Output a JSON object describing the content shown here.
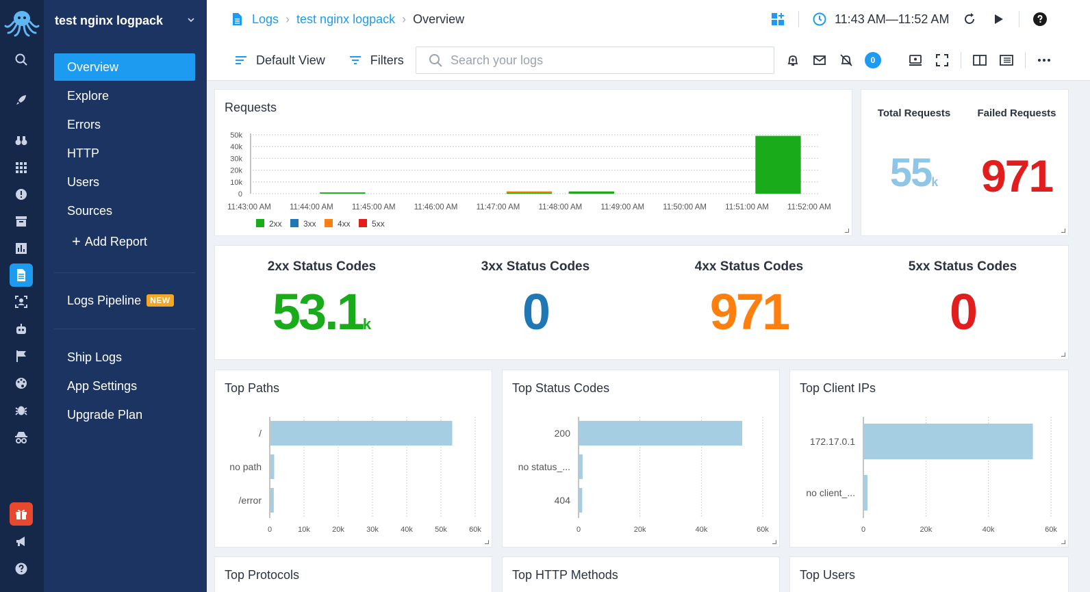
{
  "project": {
    "name": "test nginx logpack"
  },
  "nav": {
    "items": [
      "Overview",
      "Explore",
      "Errors",
      "HTTP",
      "Users",
      "Sources"
    ],
    "add_report": "Add Report",
    "logs_pipeline": "Logs Pipeline",
    "new_badge": "NEW",
    "bottom_items": [
      "Ship Logs",
      "App Settings",
      "Upgrade Plan"
    ]
  },
  "breadcrumb": {
    "root": "Logs",
    "project": "test nginx logpack",
    "current": "Overview"
  },
  "header": {
    "time_range": "11:43 AM—11:52 AM",
    "default_view": "Default View",
    "filters": "Filters",
    "search_placeholder": "Search your logs",
    "alert_count": "0"
  },
  "colors": {
    "accent": "#1d9bf0",
    "2xx": "#1aab1a",
    "3xx": "#1f77b4",
    "4xx": "#ff7f0e",
    "5xx": "#e11d1d",
    "bar": "#a6cee3",
    "total": "#8fc6e6"
  },
  "requests_panel": {
    "title": "Requests"
  },
  "totals": {
    "total_label": "Total Requests",
    "total_value": "55",
    "total_suffix": "k",
    "failed_label": "Failed Requests",
    "failed_value": "971"
  },
  "status_codes": [
    {
      "label": "2xx Status Codes",
      "value": "53.1",
      "suffix": "k",
      "color": "#1aab1a"
    },
    {
      "label": "3xx Status Codes",
      "value": "0",
      "suffix": "",
      "color": "#1f77b4"
    },
    {
      "label": "4xx Status Codes",
      "value": "971",
      "suffix": "",
      "color": "#ff7f0e"
    },
    {
      "label": "5xx Status Codes",
      "value": "0",
      "suffix": "",
      "color": "#e11d1d"
    }
  ],
  "bottom_panels": {
    "protocols": "Top Protocols",
    "methods": "Top HTTP Methods",
    "users": "Top Users"
  },
  "chart_data": [
    {
      "type": "bar",
      "title": "Requests",
      "stacked": true,
      "categories": [
        "11:43:00 AM",
        "11:44:00 AM",
        "11:45:00 AM",
        "11:46:00 AM",
        "11:47:00 AM",
        "11:48:00 AM",
        "11:49:00 AM",
        "11:50:00 AM",
        "11:51:00 AM",
        "11:52:00 AM"
      ],
      "series": [
        {
          "name": "2xx",
          "color": "#1aab1a",
          "values": [
            0,
            1100,
            0,
            0,
            1000,
            1900,
            0,
            0,
            49100,
            0
          ]
        },
        {
          "name": "3xx",
          "color": "#1f77b4",
          "values": [
            0,
            0,
            0,
            0,
            0,
            0,
            0,
            0,
            0,
            0
          ]
        },
        {
          "name": "4xx",
          "color": "#ff7f0e",
          "values": [
            0,
            0,
            0,
            0,
            971,
            0,
            0,
            0,
            0,
            0
          ]
        },
        {
          "name": "5xx",
          "color": "#e11d1d",
          "values": [
            0,
            0,
            0,
            0,
            0,
            0,
            0,
            0,
            0,
            0
          ]
        }
      ],
      "yticks": [
        "0",
        "10k",
        "20k",
        "30k",
        "40k",
        "50k"
      ],
      "ylim": [
        0,
        50000
      ],
      "legend": "bottom-left",
      "grid": true
    },
    {
      "type": "bar",
      "orientation": "horizontal",
      "title": "Top Paths",
      "categories": [
        "/",
        "no path",
        "/error"
      ],
      "values": [
        53100,
        1100,
        971
      ],
      "xticks": [
        "0",
        "10k",
        "20k",
        "30k",
        "40k",
        "50k",
        "60k"
      ],
      "xlim": [
        0,
        60000
      ]
    },
    {
      "type": "bar",
      "orientation": "horizontal",
      "title": "Top Status Codes",
      "categories": [
        "200",
        "no status_...",
        "404"
      ],
      "values": [
        53100,
        1100,
        971
      ],
      "xticks": [
        "0",
        "20k",
        "40k",
        "60k"
      ],
      "xlim": [
        0,
        60000
      ]
    },
    {
      "type": "bar",
      "orientation": "horizontal",
      "title": "Top Client IPs",
      "categories": [
        "172.17.0.1",
        "no client_..."
      ],
      "values": [
        54000,
        1100
      ],
      "xticks": [
        "0",
        "20k",
        "40k",
        "60k"
      ],
      "xlim": [
        0,
        60000
      ]
    }
  ]
}
